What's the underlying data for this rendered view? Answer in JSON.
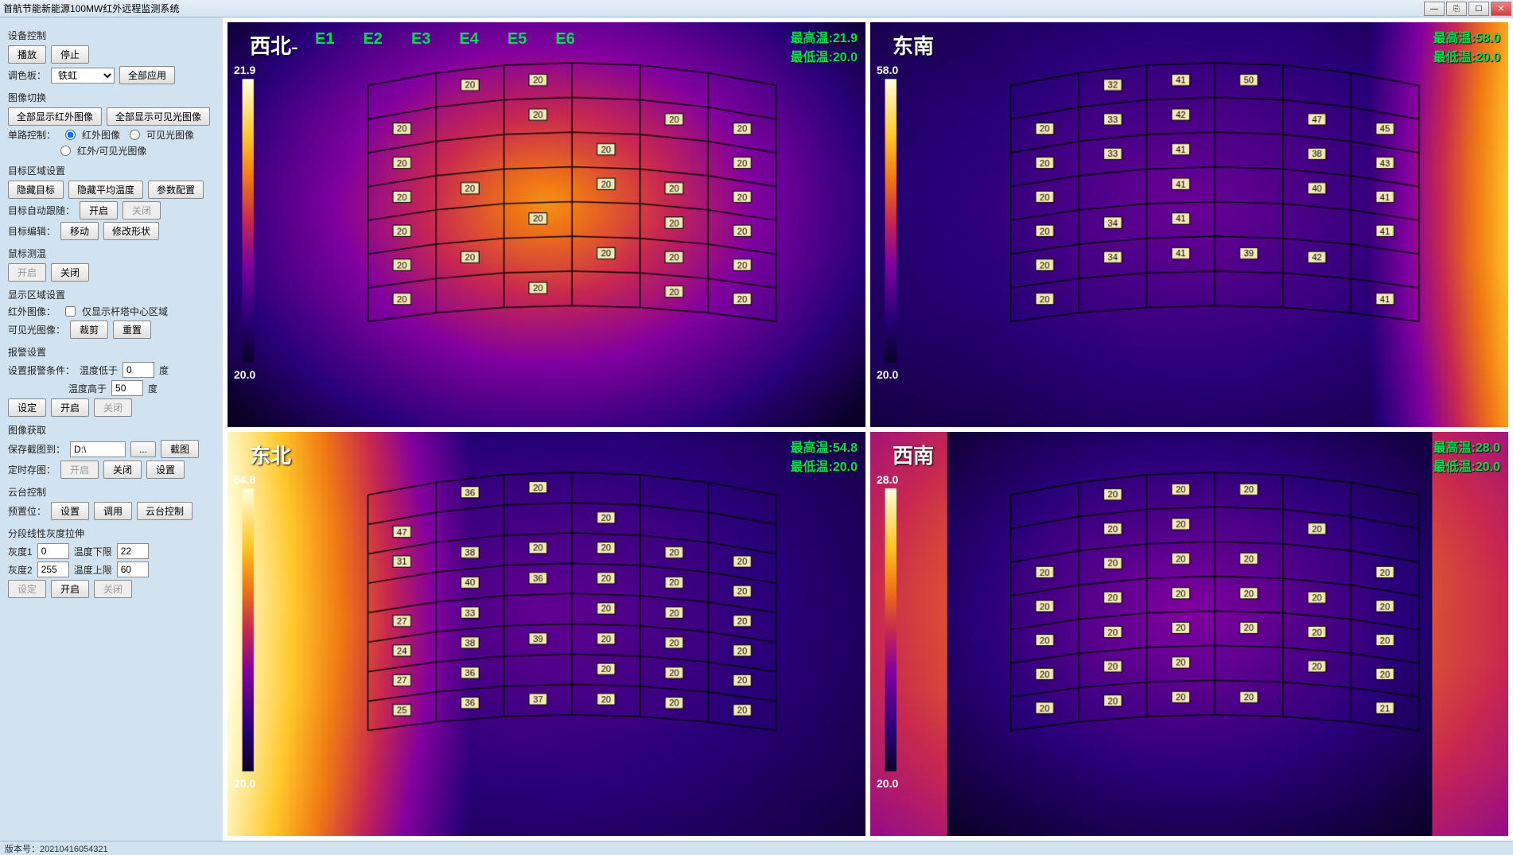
{
  "app": {
    "title": "首航节能新能源100MW红外远程监测系统",
    "version_label": "版本号：",
    "version": "20210416054321"
  },
  "window_buttons": {
    "min": "—",
    "max": "☐",
    "close": "✕",
    "extra": "⎘"
  },
  "sidebar": {
    "device_control": {
      "title": "设备控制",
      "play": "播放",
      "stop": "停止",
      "palette_label": "调色板：",
      "palette_value": "铁虹",
      "apply_all": "全部应用"
    },
    "image_switch": {
      "title": "图像切换",
      "all_ir": "全部显示红外图像",
      "all_vis": "全部显示可见光图像",
      "single_label": "单路控制：",
      "opt_ir": "红外图像",
      "opt_vis": "可见光图像",
      "opt_both": "红外/可见光图像"
    },
    "target_region": {
      "title": "目标区域设置",
      "hide_target": "隐藏目标",
      "hide_avg": "隐藏平均温度",
      "param": "参数配置",
      "auto_track_label": "目标自动跟随：",
      "on": "开启",
      "off": "关闭",
      "edit_label": "目标编辑：",
      "move": "移动",
      "reshape": "修改形状"
    },
    "mouse_temp": {
      "title": "鼠标测温",
      "on": "开启",
      "off": "关闭"
    },
    "display_region": {
      "title": "显示区域设置",
      "ir_label": "红外图像：",
      "chk_label": "仅显示杆塔中心区域",
      "vis_label": "可见光图像：",
      "crop": "裁剪",
      "reset": "重置"
    },
    "alarm": {
      "title": "报警设置",
      "cond_label": "设置报警条件：",
      "below_label": "温度低于",
      "below_value": "0",
      "above_label": "温度高于",
      "above_value": "50",
      "unit": "度",
      "set": "设定",
      "on": "开启",
      "off": "关闭"
    },
    "capture": {
      "title": "图像获取",
      "save_label": "保存截图到：",
      "path": "D:\\",
      "browse": "...",
      "shot": "截图",
      "timed_label": "定时存图：",
      "on": "开启",
      "off": "关闭",
      "settings": "设置"
    },
    "ptz": {
      "title": "云台控制",
      "preset_label": "预置位：",
      "set": "设置",
      "call": "调用",
      "control": "云台控制"
    },
    "linear_stretch": {
      "title": "分段线性灰度拉伸",
      "gray1_label": "灰度1",
      "gray1_value": "0",
      "gray2_label": "灰度2",
      "gray2_value": "255",
      "tmin_label": "温度下限",
      "tmin_value": "22",
      "tmax_label": "温度上限",
      "tmax_value": "60",
      "set": "设定",
      "on": "开启",
      "off": "关闭"
    }
  },
  "panels": [
    {
      "id": "nw",
      "dir": "西北-",
      "selected": true,
      "max_label": "最高温:",
      "max": "21.9",
      "min_label": "最低温:",
      "min": "20.0",
      "scale_top": "21.9",
      "scale_bot": "20.0",
      "col_labels": [
        "E1",
        "E2",
        "E3",
        "E4",
        "E5",
        "E6"
      ],
      "heat": "iron-warm",
      "grid_cols": 6,
      "grid_rows": 7,
      "cells": [
        [
          "",
          "20",
          "20",
          "",
          "",
          ""
        ],
        [
          "20",
          "",
          "20",
          "",
          "20",
          "20"
        ],
        [
          "20",
          "",
          "",
          "20",
          "",
          "20"
        ],
        [
          "20",
          "20",
          "",
          "20",
          "20",
          "20"
        ],
        [
          "20",
          "",
          "20",
          "",
          "20",
          "20"
        ],
        [
          "20",
          "20",
          "",
          "20",
          "20",
          "20"
        ],
        [
          "20",
          "",
          "20",
          "",
          "20",
          "20"
        ]
      ]
    },
    {
      "id": "se",
      "dir": "东南",
      "selected": false,
      "max_label": "最高温:",
      "max": "58.0",
      "min_label": "最低温:",
      "min": "20.0",
      "scale_top": "58.0",
      "scale_bot": "20.0",
      "col_labels": [],
      "heat": "iron-edge",
      "grid_cols": 6,
      "grid_rows": 7,
      "cells": [
        [
          "",
          "32",
          "41",
          "50",
          "",
          ""
        ],
        [
          "20",
          "33",
          "42",
          "",
          "47",
          "45"
        ],
        [
          "20",
          "33",
          "41",
          "",
          "38",
          "43"
        ],
        [
          "20",
          "",
          "41",
          "",
          "40",
          "41"
        ],
        [
          "20",
          "34",
          "41",
          "",
          "",
          "41"
        ],
        [
          "20",
          "34",
          "41",
          "39",
          "42",
          ""
        ],
        [
          "20",
          "",
          "",
          "",
          "",
          "41"
        ]
      ]
    },
    {
      "id": "ne",
      "dir": "东北",
      "selected": false,
      "max_label": "最高温:",
      "max": "54.8",
      "min_label": "最低温:",
      "min": "20.0",
      "scale_top": "54.8",
      "scale_bot": "20.0",
      "col_labels": [],
      "heat": "iron-left",
      "grid_cols": 6,
      "grid_rows": 8,
      "cells": [
        [
          "",
          "36",
          "20",
          "",
          "",
          ""
        ],
        [
          "47",
          "",
          "",
          "20",
          "",
          ""
        ],
        [
          "31",
          "38",
          "20",
          "20",
          "20",
          "20"
        ],
        [
          "",
          "40",
          "36",
          "20",
          "20",
          "20"
        ],
        [
          "27",
          "33",
          "",
          "20",
          "20",
          "20"
        ],
        [
          "24",
          "38",
          "39",
          "20",
          "20",
          "20"
        ],
        [
          "27",
          "36",
          "",
          "20",
          "20",
          "20"
        ],
        [
          "25",
          "36",
          "37",
          "20",
          "20",
          "20"
        ]
      ]
    },
    {
      "id": "sw",
      "dir": "西南",
      "selected": false,
      "max_label": "最高温:",
      "max": "28.0",
      "min_label": "最低温:",
      "min": "20.0",
      "scale_top": "28.0",
      "scale_bot": "20.0",
      "col_labels": [],
      "heat": "iron-cool",
      "grid_cols": 6,
      "grid_rows": 7,
      "cells": [
        [
          "",
          "20",
          "20",
          "20",
          "",
          ""
        ],
        [
          "",
          "20",
          "20",
          "",
          "20",
          ""
        ],
        [
          "20",
          "20",
          "20",
          "20",
          "",
          "20"
        ],
        [
          "20",
          "20",
          "20",
          "20",
          "20",
          "20"
        ],
        [
          "20",
          "20",
          "20",
          "20",
          "20",
          "20"
        ],
        [
          "20",
          "20",
          "20",
          "",
          "20",
          "20"
        ],
        [
          "20",
          "20",
          "20",
          "20",
          "",
          "21"
        ]
      ]
    }
  ]
}
